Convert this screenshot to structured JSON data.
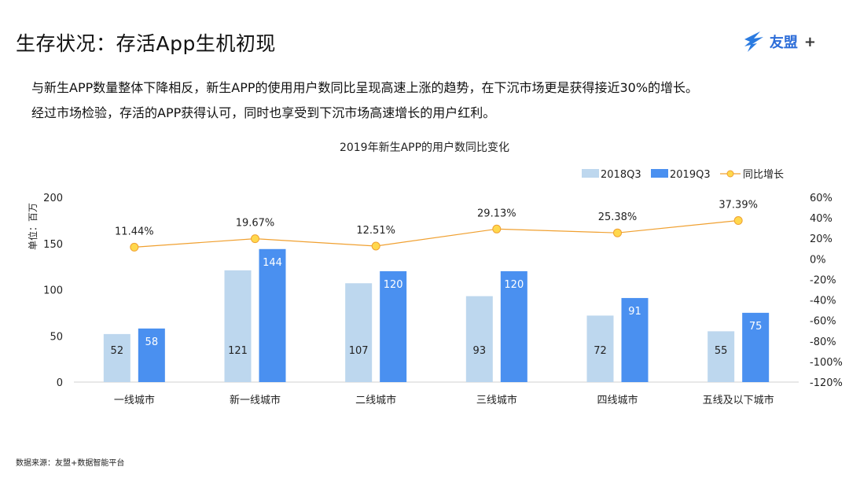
{
  "page": {
    "title": "生存状况：存活App生机初现",
    "logo_text": "友盟",
    "logo_plus": "+",
    "desc_line1": "与新生APP数量整体下降相反，新生APP的使用用户数同比呈现高速上涨的趋势，在下沉市场更是获得接近30%的增长。",
    "desc_line2": "经过市场检验，存活的APP获得认可，同时也享受到下沉市场高速增长的用户红利。",
    "source": "数据来源：友盟+数据智能平台"
  },
  "chart_data": {
    "type": "bar",
    "title": "2019年新生APP的用户数同比变化",
    "ylabel": "单位：百万",
    "categories": [
      "一线城市",
      "新一线城市",
      "二线城市",
      "三线城市",
      "四线城市",
      "五线及以下城市"
    ],
    "series": [
      {
        "name": "2018Q3",
        "type": "bar",
        "values": [
          52,
          121,
          107,
          93,
          72,
          55
        ],
        "color": "#bdd7ee"
      },
      {
        "name": "2019Q3",
        "type": "bar",
        "values": [
          58,
          144,
          120,
          120,
          91,
          75
        ],
        "color": "#4a90f0"
      },
      {
        "name": "同比增长",
        "type": "line",
        "axis": "right",
        "values": [
          11.44,
          19.67,
          12.51,
          29.13,
          25.38,
          37.39
        ],
        "labels": [
          "11.44%",
          "19.67%",
          "12.51%",
          "29.13%",
          "25.38%",
          "37.39%"
        ],
        "color": "#f0a030",
        "marker_fill": "#ffd84d"
      }
    ],
    "ylim": [
      0,
      200
    ],
    "yticks": [
      0,
      50,
      100,
      150,
      200
    ],
    "y2lim": [
      -120,
      60
    ],
    "y2ticks": [
      -120,
      -100,
      -80,
      -60,
      -40,
      -20,
      0,
      20,
      40,
      60
    ],
    "y2tick_labels": [
      "-120%",
      "-100%",
      "-80%",
      "-60%",
      "-40%",
      "-20%",
      "0%",
      "20%",
      "40%",
      "60%"
    ],
    "legend_position": "top-right",
    "grid": false
  }
}
